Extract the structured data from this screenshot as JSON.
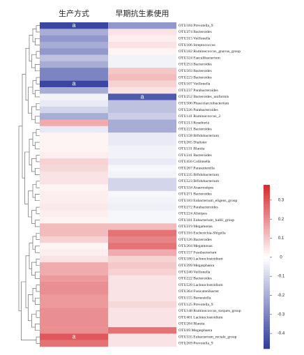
{
  "chart_data": {
    "type": "heatmap",
    "categories": [
      "OTU184 Prevotella_9",
      "OTU274 Bacteroides",
      "OTU315 Veillonella",
      "OTU106 Streptococcus",
      "OTU182 Ruminococcus_gnavus_group",
      "OTU324 Faecalibacterium",
      "OTU253 Bacteroides",
      "OTU503 Bacteroides",
      "OTU223 Bacteroides",
      "OTU107 Veillonella",
      "OTU237 Parabacteroides",
      "OTU252 Bacteroides_uniformis",
      "OTU506 Phascolarctobacterium",
      "OTU226 Parabacteroides",
      "OTU141 Ruminococcus_2",
      "OTU213 Roseburia",
      "OTU221 Bacteroides",
      "OTU158 Bifidobacterium",
      "OTU265 Dialister",
      "OTU131 Blautia",
      "OTU241 Bacteroides",
      "OTU456 Collinsella",
      "OTU267 Parasutterella",
      "OTU235 Bifidobacterium",
      "OTU523 Bifidobacterium",
      "OTU334 Anaerostipes",
      "OTU271 Bacteroides",
      "OTU183 Eubacterium_eligens_group",
      "OTU272 Parabacteroides",
      "OTU224 Alistipes",
      "OTU181 Eubacterium_hallii_group",
      "OTU219 Megamonas",
      "OTU316 Escherichia-Shigella",
      "OTU126 Bacteroides",
      "OTU204 Megamonas",
      "OTU157 Fusobacterium",
      "OTU180 Lachnoclostridium",
      "OTU399 Megasphaera",
      "OTU240 Veillonella",
      "OTU222 Bacteroides",
      "OTU528 Lachnoclostridium",
      "OTU364 Fusicatenibacter",
      "OTU155 Barnesiella",
      "OTU125 Prevotella_9",
      "OTU148 Ruminococcus_torques_group",
      "OTU401 Lachnoclostridium",
      "OTU284 Blautia",
      "OTU69 Megasphaera",
      "OTU335 Eubacterium_rectale_group",
      "OTU269 Prevotella_9"
    ],
    "series": [
      {
        "name": "生产方式",
        "values": [
          -0.45,
          -0.2,
          -0.25,
          -0.2,
          -0.25,
          -0.15,
          -0.2,
          -0.3,
          -0.3,
          -0.45,
          -0.2,
          -0.03,
          -0.05,
          -0.1,
          -0.2,
          0.15,
          -0.05,
          0.02,
          0.02,
          0.02,
          0.03,
          0.08,
          0.07,
          0.05,
          0.05,
          0.02,
          0.03,
          0.03,
          0.04,
          0.03,
          0.02,
          0.12,
          0.12,
          0.08,
          0.02,
          0.03,
          0.05,
          0.15,
          0.15,
          0.18,
          0.2,
          0.2,
          0.18,
          0.18,
          0.2,
          0.2,
          0.2,
          0.2,
          0.3,
          0.25
        ]
      },
      {
        "name": "早期抗生素使用",
        "values": [
          -0.25,
          0.05,
          0.03,
          0.05,
          0.02,
          -0.03,
          -0.03,
          0.1,
          0.12,
          0.08,
          0.05,
          -0.4,
          -0.15,
          -0.15,
          -0.12,
          -0.2,
          -0.2,
          -0.05,
          -0.05,
          -0.03,
          -0.03,
          -0.05,
          -0.02,
          -0.03,
          -0.1,
          -0.1,
          -0.02,
          -0.03,
          -0.04,
          -0.02,
          -0.02,
          0.12,
          0.25,
          0.22,
          0.25,
          0.15,
          0.08,
          0.1,
          0.08,
          0.05,
          0.05,
          0.05,
          0.05,
          0.07,
          0.05,
          0.05,
          0.05,
          0.25,
          0.05,
          0.05
        ]
      }
    ],
    "annotations": [
      {
        "text": "a",
        "series": 0,
        "index": 0
      },
      {
        "text": "a",
        "series": 0,
        "index": 9
      },
      {
        "text": "a",
        "series": 1,
        "index": 11
      },
      {
        "text": "a",
        "series": 0,
        "index": 48
      }
    ],
    "colors": {
      "low": "#2e3a9c",
      "mid": "#ffffff",
      "high": "#d62a2f"
    },
    "clim": [
      -0.48,
      0.38
    ],
    "cticks": [
      0.3,
      0.2,
      0.1,
      0,
      -0.1,
      -0.2,
      -0.3,
      -0.4
    ]
  }
}
